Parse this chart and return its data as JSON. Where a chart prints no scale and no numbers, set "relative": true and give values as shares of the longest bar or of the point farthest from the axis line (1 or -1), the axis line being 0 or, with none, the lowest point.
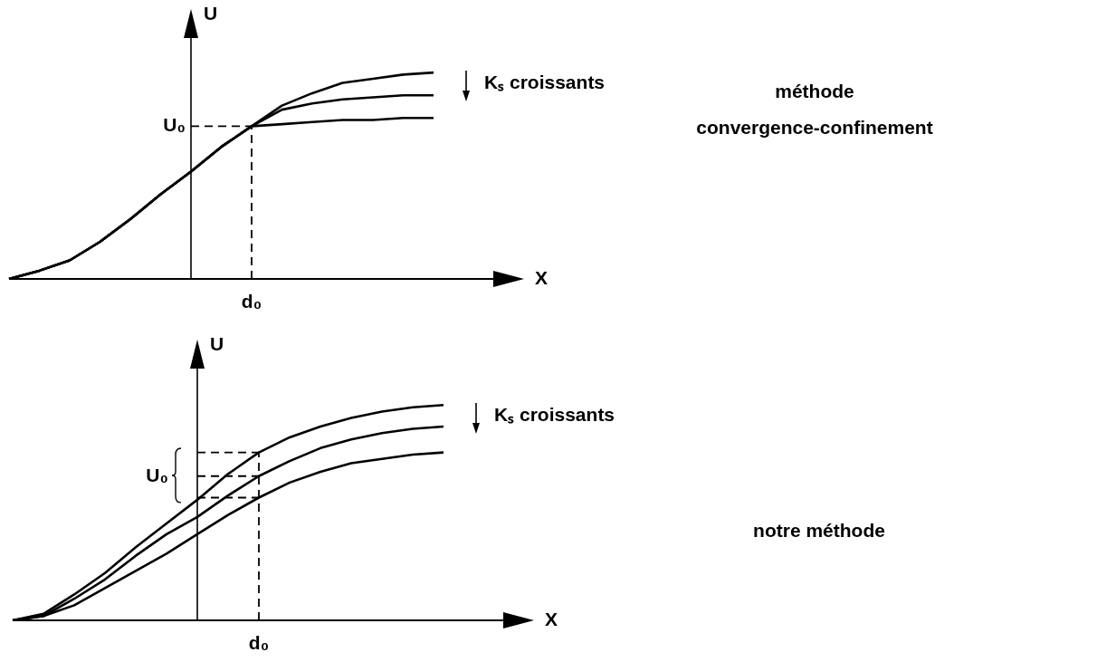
{
  "chart_data": [
    {
      "type": "line",
      "xlabel": "X",
      "ylabel": "U",
      "relative": true,
      "tick_labels": false,
      "legend": false,
      "marker": "none",
      "line_style": "solid",
      "categories": [
        null,
        null,
        null,
        null,
        null,
        null,
        null,
        null,
        null,
        null,
        null,
        null,
        null,
        null,
        null
      ],
      "series": [
        {
          "color": "#000000",
          "values": [
            0,
            0.04,
            0.09,
            0.18,
            0.29,
            0.41,
            0.52,
            0.64,
            0.74,
            0.84,
            0.9,
            0.95,
            0.97,
            0.99,
            1
          ]
        },
        {
          "color": "#000000",
          "values": [
            0,
            0.04,
            0.09,
            0.18,
            0.29,
            0.41,
            0.52,
            0.64,
            0.74,
            0.82,
            0.85,
            0.87,
            0.88,
            0.89,
            0.89
          ]
        },
        {
          "color": "#000000",
          "values": [
            0,
            0.04,
            0.09,
            0.18,
            0.29,
            0.41,
            0.52,
            0.64,
            0.74,
            0.75,
            0.76,
            0.77,
            0.77,
            0.78,
            0.78
          ]
        }
      ],
      "ref_lines": [
        {
          "axis": "y",
          "value": 0.74,
          "label": "U₀",
          "line_style": "dashed"
        },
        {
          "axis": "x",
          "label": "d₀",
          "line_style": "dashed"
        }
      ],
      "annotations": [
        "Kₛ croissants",
        "méthode convergence-confinement"
      ]
    },
    {
      "type": "line",
      "xlabel": "X",
      "ylabel": "U",
      "relative": true,
      "tick_labels": false,
      "legend": false,
      "marker": "none",
      "line_style": "solid",
      "categories": [
        null,
        null,
        null,
        null,
        null,
        null,
        null,
        null,
        null,
        null,
        null,
        null,
        null,
        null,
        null
      ],
      "series": [
        {
          "color": "#000000",
          "values": [
            0,
            0.03,
            0.12,
            0.22,
            0.34,
            0.45,
            0.56,
            0.68,
            0.78,
            0.85,
            0.9,
            0.94,
            0.97,
            0.99,
            1
          ]
        },
        {
          "color": "#000000",
          "values": [
            0,
            0.02,
            0.1,
            0.19,
            0.3,
            0.4,
            0.48,
            0.58,
            0.67,
            0.74,
            0.8,
            0.84,
            0.87,
            0.89,
            0.9
          ]
        },
        {
          "color": "#000000",
          "values": [
            0,
            0.02,
            0.07,
            0.15,
            0.23,
            0.31,
            0.4,
            0.49,
            0.57,
            0.64,
            0.69,
            0.73,
            0.75,
            0.77,
            0.78
          ]
        }
      ],
      "ref_lines": [
        {
          "axis": "y",
          "value": 0.78,
          "label": null,
          "line_style": "dashed"
        },
        {
          "axis": "y",
          "value": 0.67,
          "label": "U₀",
          "line_style": "dashed"
        },
        {
          "axis": "y",
          "value": 0.57,
          "label": null,
          "line_style": "dashed"
        },
        {
          "axis": "x",
          "label": "d₀",
          "line_style": "dashed"
        }
      ],
      "annotations": [
        "Kₛ croissants",
        "notre méthode"
      ]
    }
  ]
}
